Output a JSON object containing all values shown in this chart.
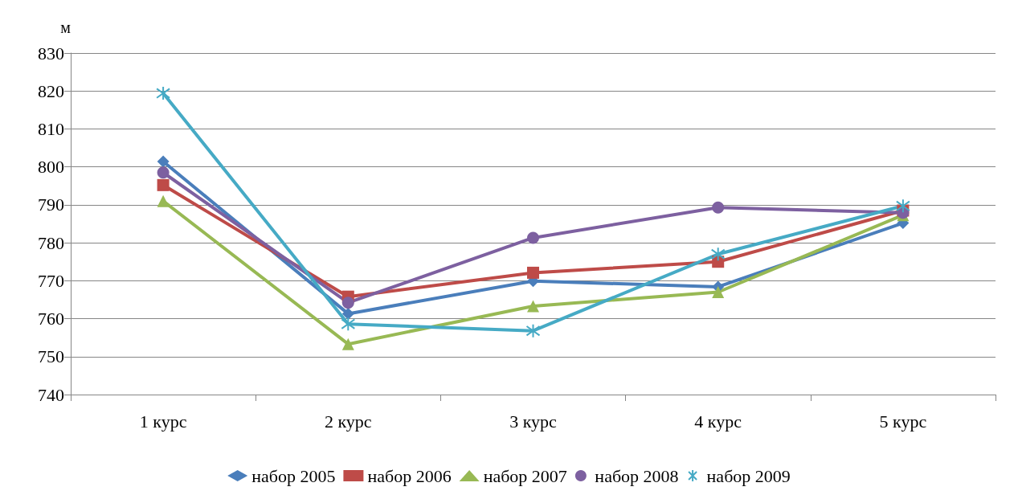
{
  "chart_data": {
    "type": "line",
    "ylabel": "м",
    "categories": [
      "1 курс",
      "2 курс",
      "3 курс",
      "4 курс",
      "5 курс"
    ],
    "ylim": [
      740,
      830
    ],
    "yticks": [
      740,
      750,
      760,
      770,
      780,
      790,
      800,
      810,
      820,
      830
    ],
    "grid": "y",
    "legend": "bottom",
    "series": [
      {
        "name": "набор 2005",
        "color": "#4a7ebb",
        "marker": "diamond",
        "values": [
          801.4,
          761.3,
          769.9,
          768.4,
          785.2
        ]
      },
      {
        "name": "набор 2006",
        "color": "#be4b48",
        "marker": "square",
        "values": [
          795.2,
          765.8,
          772.1,
          775,
          788.5
        ]
      },
      {
        "name": "набор 2007",
        "color": "#98b954",
        "marker": "triangle",
        "values": [
          791,
          753.3,
          763.3,
          767,
          787.3
        ]
      },
      {
        "name": "набор 2008",
        "color": "#7d60a0",
        "marker": "circle",
        "values": [
          798.5,
          764.2,
          781.3,
          789.3,
          787.9
        ]
      },
      {
        "name": "набор 2009",
        "color": "#46aac5",
        "marker": "cross",
        "values": [
          819.4,
          758.6,
          756.8,
          777,
          789.7
        ]
      }
    ]
  }
}
